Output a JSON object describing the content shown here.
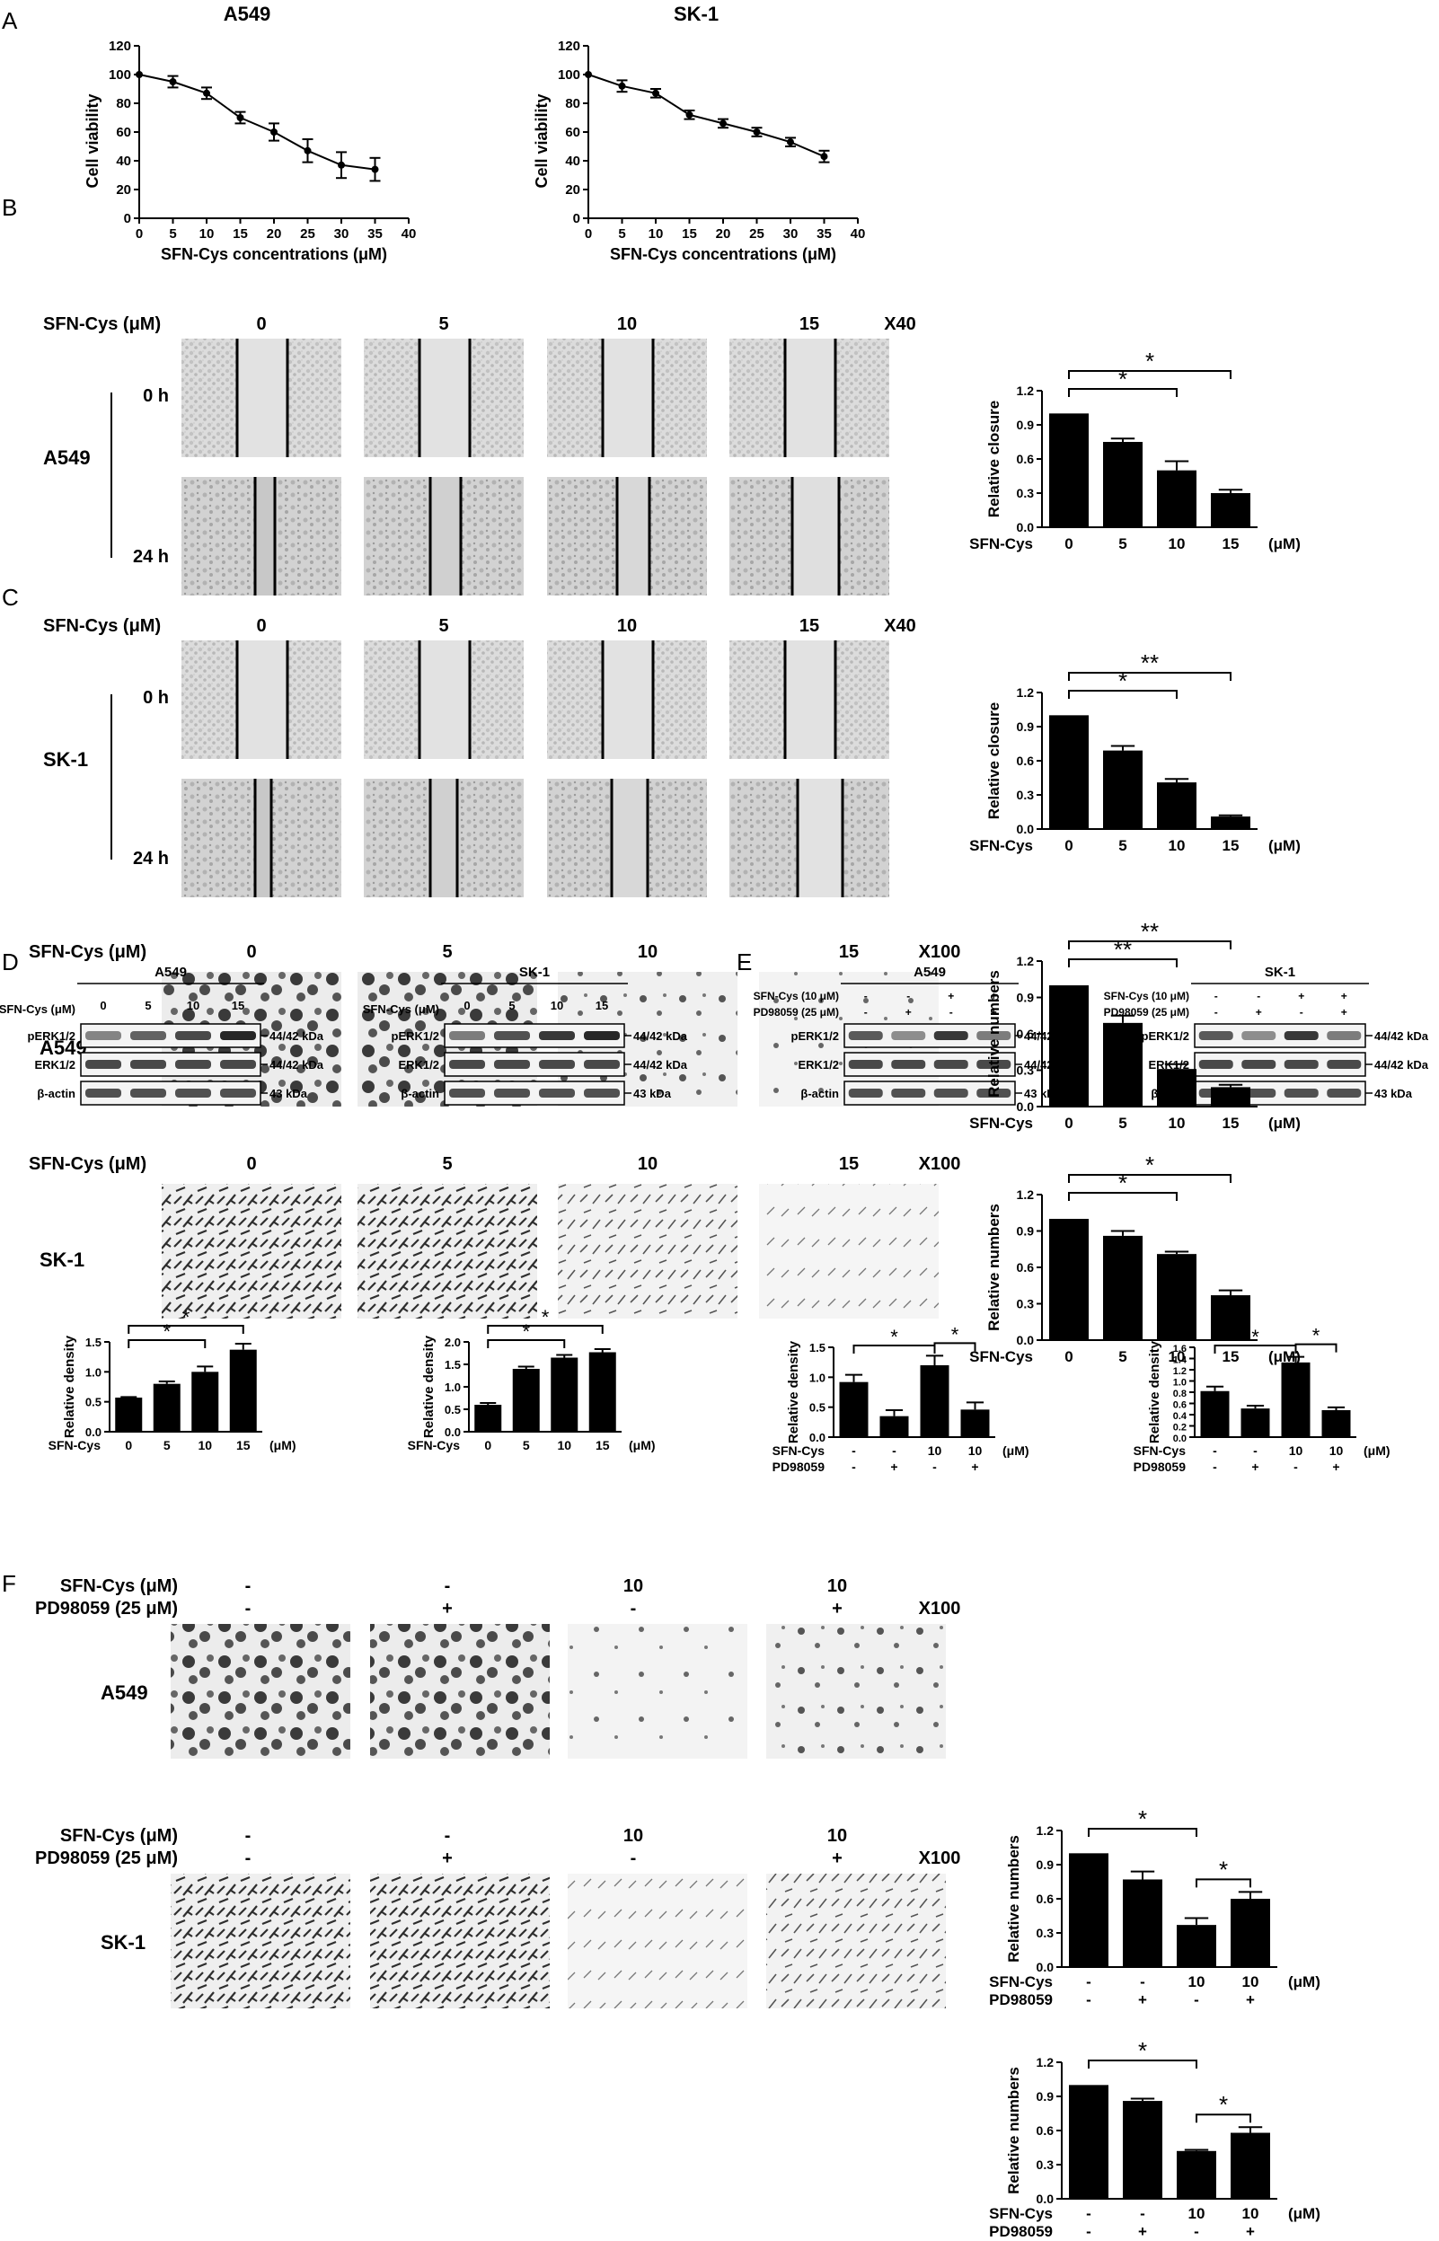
{
  "panel_letters": [
    "A",
    "B",
    "C",
    "D",
    "E",
    "F"
  ],
  "chart_data": [
    {
      "id": "A_A549",
      "type": "line",
      "title": "A549",
      "xlabel": "SFN-Cys concentrations (μM)",
      "ylabel": "Cell viability",
      "x": [
        0,
        5,
        10,
        15,
        20,
        25,
        30,
        35
      ],
      "y": [
        100,
        95,
        87,
        70,
        60,
        47,
        37,
        34
      ],
      "err": [
        0,
        4,
        4,
        4,
        6,
        8,
        9,
        8
      ],
      "xlim": [
        0,
        40
      ],
      "ylim": [
        0,
        120
      ],
      "xticks": [
        0,
        5,
        10,
        15,
        20,
        25,
        30,
        35,
        40
      ],
      "yticks": [
        0,
        20,
        40,
        60,
        80,
        100,
        120
      ]
    },
    {
      "id": "A_SK1",
      "type": "line",
      "title": "SK-1",
      "xlabel": "SFN-Cys concentrations (μM)",
      "ylabel": "Cell viability",
      "x": [
        0,
        5,
        10,
        15,
        20,
        25,
        30,
        35
      ],
      "y": [
        100,
        92,
        87,
        72,
        66,
        60,
        53,
        43
      ],
      "err": [
        0,
        4,
        3,
        3,
        3,
        3,
        3,
        4
      ],
      "xlim": [
        0,
        40
      ],
      "ylim": [
        0,
        120
      ],
      "xticks": [
        0,
        5,
        10,
        15,
        20,
        25,
        30,
        35,
        40
      ],
      "yticks": [
        0,
        20,
        40,
        60,
        80,
        100,
        120
      ]
    },
    {
      "id": "B_A549",
      "type": "bar",
      "ylabel": "Relative closure",
      "row_label": "SFN-Cys",
      "unit": "(μM)",
      "categories": [
        "0",
        "5",
        "10",
        "15"
      ],
      "values": [
        1.0,
        0.75,
        0.5,
        0.3
      ],
      "err": [
        0,
        0.03,
        0.08,
        0.03
      ],
      "ylim": [
        0,
        1.2
      ],
      "yticks": [
        "0.0",
        "0.3",
        "0.6",
        "0.9",
        "1.2"
      ],
      "sig": [
        {
          "from": 0,
          "to": 2,
          "label": "*"
        },
        {
          "from": 0,
          "to": 3,
          "label": "*"
        }
      ]
    },
    {
      "id": "B_SK1",
      "type": "bar",
      "ylabel": "Relative closure",
      "row_label": "SFN-Cys",
      "unit": "(μM)",
      "categories": [
        "0",
        "5",
        "10",
        "15"
      ],
      "values": [
        1.0,
        0.69,
        0.41,
        0.11
      ],
      "err": [
        0,
        0.04,
        0.03,
        0.01
      ],
      "ylim": [
        0,
        1.2
      ],
      "yticks": [
        "0.0",
        "0.3",
        "0.6",
        "0.9",
        "1.2"
      ],
      "sig": [
        {
          "from": 0,
          "to": 2,
          "label": "*"
        },
        {
          "from": 0,
          "to": 3,
          "label": "**"
        }
      ]
    },
    {
      "id": "C_A549",
      "type": "bar",
      "ylabel": "Relative numbers",
      "row_label": "SFN-Cys",
      "unit": "(μM)",
      "categories": [
        "0",
        "5",
        "10",
        "15"
      ],
      "values": [
        1.0,
        0.69,
        0.31,
        0.16
      ],
      "err": [
        0,
        0.06,
        0.04,
        0.02
      ],
      "ylim": [
        0,
        1.2
      ],
      "yticks": [
        "0.0",
        "0.3",
        "0.6",
        "0.9",
        "1.2"
      ],
      "sig": [
        {
          "from": 0,
          "to": 2,
          "label": "**"
        },
        {
          "from": 0,
          "to": 3,
          "label": "**"
        }
      ]
    },
    {
      "id": "C_SK1",
      "type": "bar",
      "ylabel": "Relative numbers",
      "row_label": "SFN-Cys",
      "unit": "(μM)",
      "categories": [
        "0",
        "5",
        "10",
        "15"
      ],
      "values": [
        1.0,
        0.86,
        0.71,
        0.37
      ],
      "err": [
        0,
        0.04,
        0.02,
        0.04
      ],
      "ylim": [
        0,
        1.2
      ],
      "yticks": [
        "0.0",
        "0.3",
        "0.6",
        "0.9",
        "1.2"
      ],
      "sig": [
        {
          "from": 0,
          "to": 2,
          "label": "*"
        },
        {
          "from": 0,
          "to": 3,
          "label": "*"
        }
      ]
    },
    {
      "id": "D_A549",
      "type": "bar",
      "ylabel": "Relative density",
      "row_label": "SFN-Cys",
      "unit": "(μM)",
      "categories": [
        "0",
        "5",
        "10",
        "15"
      ],
      "values": [
        0.57,
        0.8,
        1.0,
        1.37
      ],
      "err": [
        0.01,
        0.04,
        0.09,
        0.1
      ],
      "ylim": [
        0,
        1.5
      ],
      "yticks": [
        "0.0",
        "0.5",
        "1.0",
        "1.5"
      ],
      "sig": [
        {
          "from": 0,
          "to": 2,
          "label": "*"
        },
        {
          "from": 0,
          "to": 3,
          "label": "*"
        }
      ]
    },
    {
      "id": "D_SK1",
      "type": "bar",
      "ylabel": "Relative density",
      "row_label": "SFN-Cys",
      "unit": "(μM)",
      "categories": [
        "0",
        "5",
        "10",
        "15"
      ],
      "values": [
        0.6,
        1.4,
        1.65,
        1.77
      ],
      "err": [
        0.04,
        0.05,
        0.06,
        0.07
      ],
      "ylim": [
        0,
        2.0
      ],
      "yticks": [
        "0.0",
        "0.5",
        "1.0",
        "1.5",
        "2.0"
      ],
      "sig": [
        {
          "from": 0,
          "to": 2,
          "label": "*"
        },
        {
          "from": 0,
          "to": 3,
          "label": "*"
        }
      ]
    },
    {
      "id": "E_A549",
      "type": "bar",
      "ylabel": "Relative density",
      "row_label": "SFN-Cys",
      "row_label2": "PD98059",
      "unit": "(μM)",
      "categories": [
        "-",
        "-",
        "10",
        "10"
      ],
      "categories2": [
        "-",
        "+",
        "-",
        "+"
      ],
      "values": [
        0.92,
        0.35,
        1.2,
        0.46
      ],
      "err": [
        0.12,
        0.1,
        0.16,
        0.12
      ],
      "ylim": [
        0,
        1.5
      ],
      "yticks": [
        "0.0",
        "0.5",
        "1.0",
        "1.5"
      ],
      "sig": [
        {
          "from": 0,
          "to": 2,
          "label": "*"
        },
        {
          "from": 2,
          "to": 3,
          "label": "*"
        }
      ]
    },
    {
      "id": "E_SK1",
      "type": "bar",
      "ylabel": "Relative density",
      "row_label": "SFN-Cys",
      "row_label2": "PD98059",
      "unit": "(μM)",
      "categories": [
        "-",
        "-",
        "10",
        "10"
      ],
      "categories2": [
        "-",
        "+",
        "-",
        "+"
      ],
      "values": [
        0.82,
        0.51,
        1.33,
        0.48
      ],
      "err": [
        0.08,
        0.05,
        0.1,
        0.05
      ],
      "ylim": [
        0,
        1.6
      ],
      "yticks": [
        "0.0",
        "0.2",
        "0.4",
        "0.6",
        "0.8",
        "1.0",
        "1.2",
        "1.4",
        "1.6"
      ],
      "sig": [
        {
          "from": 0,
          "to": 2,
          "label": "*"
        },
        {
          "from": 2,
          "to": 3,
          "label": "*"
        }
      ]
    },
    {
      "id": "F_A549",
      "type": "bar",
      "ylabel": "Relative numbers",
      "row_label": "SFN-Cys",
      "row_label2": "PD98059",
      "unit": "(μM)",
      "categories": [
        "-",
        "-",
        "10",
        "10"
      ],
      "categories2": [
        "-",
        "+",
        "-",
        "+"
      ],
      "values": [
        1.0,
        0.77,
        0.37,
        0.6
      ],
      "err": [
        0,
        0.07,
        0.06,
        0.06
      ],
      "ylim": [
        0,
        1.2
      ],
      "yticks": [
        "0.0",
        "0.3",
        "0.6",
        "0.9",
        "1.2"
      ],
      "sig": [
        {
          "from": 0,
          "to": 2,
          "label": "*"
        },
        {
          "from": 2,
          "to": 3,
          "label": "*"
        }
      ]
    },
    {
      "id": "F_SK1",
      "type": "bar",
      "ylabel": "Relative numbers",
      "row_label": "SFN-Cys",
      "row_label2": "PD98059",
      "unit": "(μM)",
      "categories": [
        "-",
        "-",
        "10",
        "10"
      ],
      "categories2": [
        "-",
        "+",
        "-",
        "+"
      ],
      "values": [
        1.0,
        0.86,
        0.42,
        0.58
      ],
      "err": [
        0,
        0.02,
        0.01,
        0.05
      ],
      "ylim": [
        0,
        1.2
      ],
      "yticks": [
        "0.0",
        "0.3",
        "0.6",
        "0.9",
        "1.2"
      ],
      "sig": [
        {
          "from": 0,
          "to": 2,
          "label": "*"
        },
        {
          "from": 2,
          "to": 3,
          "label": "*"
        }
      ]
    }
  ],
  "panel_B": {
    "header_label": "SFN-Cys (μM)",
    "concentrations": [
      "0",
      "5",
      "10",
      "15"
    ],
    "magnification": "X40",
    "cell_lines": [
      "A549",
      "SK-1"
    ],
    "times": [
      "0 h",
      "24 h"
    ]
  },
  "panel_C": {
    "header_label": "SFN-Cys (μM)",
    "concentrations": [
      "0",
      "5",
      "10",
      "15"
    ],
    "magnification": "X100",
    "cell_lines": [
      "A549",
      "SK-1"
    ]
  },
  "panel_D": {
    "titles": [
      "A549",
      "SK-1"
    ],
    "row_label": "SFN-Cys (μM)",
    "lanes": [
      "0",
      "5",
      "10",
      "15"
    ],
    "bands": [
      "pERK1/2",
      "ERK1/2",
      "β-actin"
    ],
    "sizes": [
      "44/42 kDa",
      "44/42 kDa",
      "43 kDa"
    ]
  },
  "panel_E": {
    "titles": [
      "A549",
      "SK-1"
    ],
    "row_labels": [
      "SFN-Cys (10 μM)",
      "PD98059 (25 μM)"
    ],
    "lanes_sfn": [
      "-",
      "-",
      "+",
      "+"
    ],
    "lanes_pd": [
      "-",
      "+",
      "-",
      "+"
    ],
    "bands": [
      "pERK1/2",
      "ERK1/2",
      "β-actin"
    ],
    "sizes": [
      "44/42 kDa",
      "44/42 kDa",
      "43 kDa"
    ]
  },
  "panel_F": {
    "row_labels": [
      "SFN-Cys (μM)",
      "PD98059 (25 μM)"
    ],
    "sfn": [
      "-",
      "-",
      "10",
      "10"
    ],
    "pd": [
      "-",
      "+",
      "-",
      "+"
    ],
    "magnification": "X100",
    "cell_lines": [
      "A549",
      "SK-1"
    ]
  }
}
